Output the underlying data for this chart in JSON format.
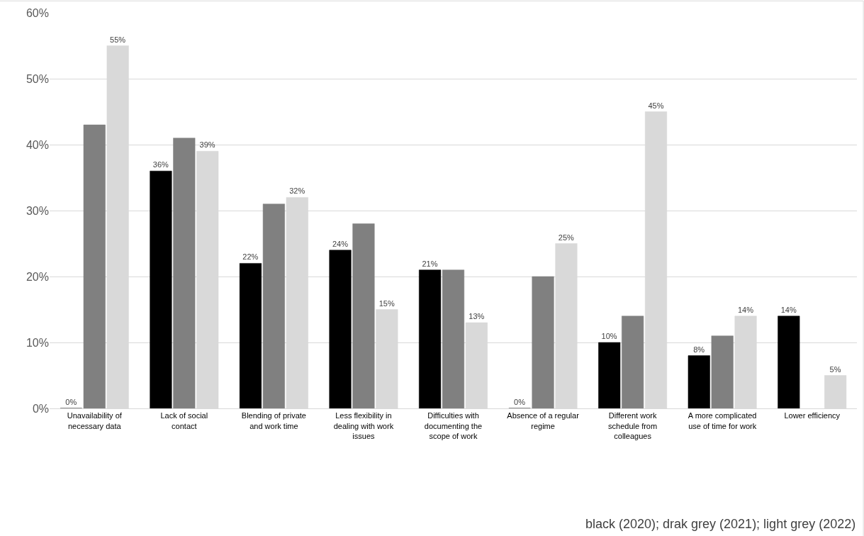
{
  "chart_data": {
    "type": "bar",
    "categories": [
      "Unavailability of necessary data",
      "Lack of social contact",
      "Blending of private and work time",
      "Less flexibility in dealing with work issues",
      "Difficulties with documenting the scope of work",
      "Absence of a regular regime",
      "Different work schedule from colleagues",
      "A more complicated use of time for work",
      "Lower efficiency"
    ],
    "series": [
      {
        "color": "#000000",
        "values": [
          0,
          36,
          22,
          24,
          21,
          0,
          10,
          8,
          14
        ],
        "value_labels": [
          "0%",
          "36%",
          "22%",
          "24%",
          "21%",
          "0%",
          "10%",
          "8%",
          "14%"
        ]
      },
      {
        "color": "#808080",
        "values": [
          43,
          41,
          31,
          28,
          21,
          20,
          14,
          11,
          null
        ]
      },
      {
        "color": "#d9d9d9",
        "values": [
          55,
          39,
          32,
          15,
          13,
          25,
          45,
          14,
          5
        ],
        "value_labels": [
          "55%",
          "39%",
          "32%",
          "15%",
          "13%",
          "25%",
          "45%",
          "14%",
          "5%"
        ]
      }
    ],
    "ylim": [
      0,
      60
    ],
    "yticks": [
      {
        "value": 0,
        "label": "0%"
      },
      {
        "value": 10,
        "label": "10%"
      },
      {
        "value": 20,
        "label": "20%"
      },
      {
        "value": 30,
        "label": "30%"
      },
      {
        "value": 40,
        "label": "40%"
      },
      {
        "value": 50,
        "label": "50%"
      },
      {
        "value": 60,
        "label": "60%"
      }
    ],
    "grid": "y",
    "legend": false,
    "annotations": [
      "black (2020); drak grey (2021); light grey (2022)"
    ]
  }
}
